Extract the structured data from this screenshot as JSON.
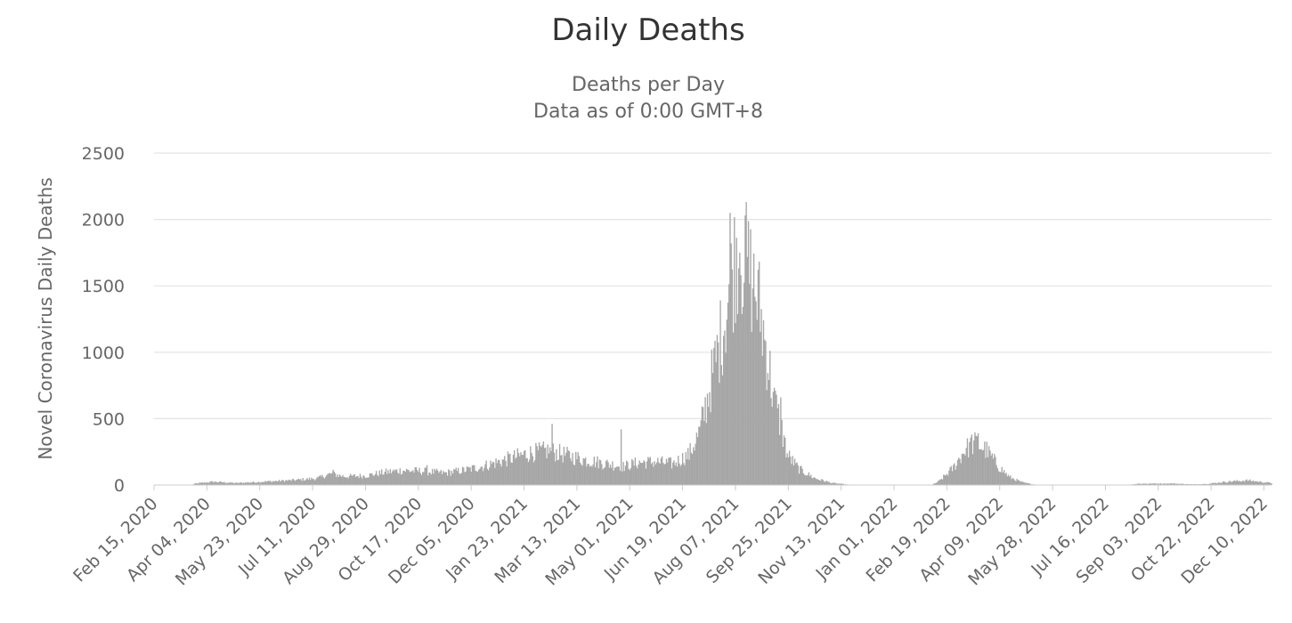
{
  "chart_data": {
    "type": "bar",
    "title": "Daily Deaths",
    "subtitle": [
      "Deaths per Day",
      "Data as of 0:00 GMT+8"
    ],
    "xlabel": "",
    "ylabel": "Novel Coronavirus Daily Deaths",
    "ylim": [
      0,
      2500
    ],
    "yticks": [
      "0",
      "500",
      "1000",
      "1500",
      "2000",
      "2500"
    ],
    "grid": true,
    "legend": "none",
    "bar_color": "#a6a6a6",
    "x_start": "2020-02-15",
    "x_end": "2022-12-17",
    "xticks": [
      {
        "date": "2020-02-15",
        "label": "Feb 15, 2020"
      },
      {
        "date": "2020-04-04",
        "label": "Apr 04, 2020"
      },
      {
        "date": "2020-05-23",
        "label": "May 23, 2020"
      },
      {
        "date": "2020-07-11",
        "label": "Jul 11, 2020"
      },
      {
        "date": "2020-08-29",
        "label": "Aug 29, 2020"
      },
      {
        "date": "2020-10-17",
        "label": "Oct 17, 2020"
      },
      {
        "date": "2020-12-05",
        "label": "Dec 05, 2020"
      },
      {
        "date": "2021-01-23",
        "label": "Jan 23, 2021"
      },
      {
        "date": "2021-03-13",
        "label": "Mar 13, 2021"
      },
      {
        "date": "2021-05-01",
        "label": "May 01, 2021"
      },
      {
        "date": "2021-06-19",
        "label": "Jun 19, 2021"
      },
      {
        "date": "2021-08-07",
        "label": "Aug 07, 2021"
      },
      {
        "date": "2021-09-25",
        "label": "Sep 25, 2021"
      },
      {
        "date": "2021-11-13",
        "label": "Nov 13, 2021"
      },
      {
        "date": "2022-01-01",
        "label": "Jan 01, 2022"
      },
      {
        "date": "2022-02-19",
        "label": "Feb 19, 2022"
      },
      {
        "date": "2022-04-09",
        "label": "Apr 09, 2022"
      },
      {
        "date": "2022-05-28",
        "label": "May 28, 2022"
      },
      {
        "date": "2022-07-16",
        "label": "Jul 16, 2022"
      },
      {
        "date": "2022-09-03",
        "label": "Sep 03, 2022"
      },
      {
        "date": "2022-10-22",
        "label": "Oct 22, 2022"
      },
      {
        "date": "2022-12-10",
        "label": "Dec 10, 2022"
      }
    ],
    "trend": [
      {
        "date": "2020-02-15",
        "value": 0
      },
      {
        "date": "2020-03-20",
        "value": 0
      },
      {
        "date": "2020-03-25",
        "value": 12
      },
      {
        "date": "2020-04-10",
        "value": 25
      },
      {
        "date": "2020-05-01",
        "value": 15
      },
      {
        "date": "2020-05-25",
        "value": 25
      },
      {
        "date": "2020-06-20",
        "value": 35
      },
      {
        "date": "2020-07-15",
        "value": 50
      },
      {
        "date": "2020-07-28",
        "value": 85
      },
      {
        "date": "2020-08-10",
        "value": 65
      },
      {
        "date": "2020-08-29",
        "value": 70
      },
      {
        "date": "2020-09-15",
        "value": 95
      },
      {
        "date": "2020-10-01",
        "value": 110
      },
      {
        "date": "2020-10-20",
        "value": 105
      },
      {
        "date": "2020-11-10",
        "value": 90
      },
      {
        "date": "2020-12-01",
        "value": 115
      },
      {
        "date": "2020-12-20",
        "value": 150
      },
      {
        "date": "2021-01-10",
        "value": 200
      },
      {
        "date": "2021-01-28",
        "value": 240
      },
      {
        "date": "2021-02-15",
        "value": 260
      },
      {
        "date": "2021-03-01",
        "value": 230
      },
      {
        "date": "2021-03-20",
        "value": 190
      },
      {
        "date": "2021-04-10",
        "value": 160
      },
      {
        "date": "2021-04-25",
        "value": 140
      },
      {
        "date": "2021-05-10",
        "value": 170
      },
      {
        "date": "2021-05-25",
        "value": 175
      },
      {
        "date": "2021-06-10",
        "value": 160
      },
      {
        "date": "2021-06-25",
        "value": 230
      },
      {
        "date": "2021-07-05",
        "value": 400
      },
      {
        "date": "2021-07-12",
        "value": 650
      },
      {
        "date": "2021-07-20",
        "value": 950
      },
      {
        "date": "2021-07-28",
        "value": 1250
      },
      {
        "date": "2021-08-03",
        "value": 1550
      },
      {
        "date": "2021-08-09",
        "value": 1800
      },
      {
        "date": "2021-08-15",
        "value": 1700
      },
      {
        "date": "2021-08-22",
        "value": 1550
      },
      {
        "date": "2021-08-29",
        "value": 1350
      },
      {
        "date": "2021-09-05",
        "value": 1000
      },
      {
        "date": "2021-09-12",
        "value": 620
      },
      {
        "date": "2021-09-18",
        "value": 450
      },
      {
        "date": "2021-09-24",
        "value": 230
      },
      {
        "date": "2021-10-05",
        "value": 120
      },
      {
        "date": "2021-10-20",
        "value": 50
      },
      {
        "date": "2021-11-05",
        "value": 15
      },
      {
        "date": "2021-11-20",
        "value": 3
      },
      {
        "date": "2021-12-01",
        "value": 0
      },
      {
        "date": "2022-02-05",
        "value": 0
      },
      {
        "date": "2022-02-12",
        "value": 30
      },
      {
        "date": "2022-02-25",
        "value": 130
      },
      {
        "date": "2022-03-08",
        "value": 270
      },
      {
        "date": "2022-03-18",
        "value": 320
      },
      {
        "date": "2022-03-28",
        "value": 260
      },
      {
        "date": "2022-04-08",
        "value": 140
      },
      {
        "date": "2022-04-18",
        "value": 60
      },
      {
        "date": "2022-04-30",
        "value": 20
      },
      {
        "date": "2022-05-10",
        "value": 5
      },
      {
        "date": "2022-05-20",
        "value": 0
      },
      {
        "date": "2022-08-05",
        "value": 0
      },
      {
        "date": "2022-08-15",
        "value": 10
      },
      {
        "date": "2022-09-15",
        "value": 12
      },
      {
        "date": "2022-10-05",
        "value": 5
      },
      {
        "date": "2022-10-20",
        "value": 10
      },
      {
        "date": "2022-11-05",
        "value": 25
      },
      {
        "date": "2022-11-25",
        "value": 35
      },
      {
        "date": "2022-12-17",
        "value": 15
      }
    ],
    "peaks": [
      {
        "date": "2021-08-02",
        "value": 2050
      },
      {
        "date": "2021-08-11",
        "value": 1750
      },
      {
        "date": "2021-08-16",
        "value": 2030
      },
      {
        "date": "2021-08-23",
        "value": 1480
      },
      {
        "date": "2021-09-14",
        "value": 680
      },
      {
        "date": "2021-09-18",
        "value": 660
      },
      {
        "date": "2021-02-18",
        "value": 460
      },
      {
        "date": "2021-04-23",
        "value": 420
      },
      {
        "date": "2022-03-14",
        "value": 380
      },
      {
        "date": "2022-03-20",
        "value": 390
      },
      {
        "date": "2020-07-30",
        "value": 115
      },
      {
        "date": "2020-10-25",
        "value": 150
      }
    ]
  }
}
